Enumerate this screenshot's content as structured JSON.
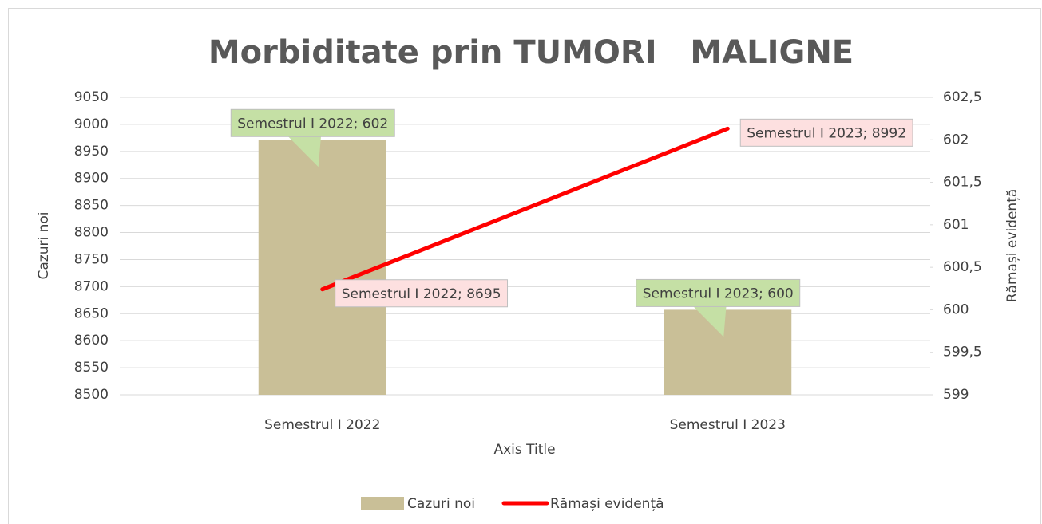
{
  "chart_data": {
    "type": "bar-line",
    "title": "Morbiditate prin TUMORI   MALIGNE",
    "x_label": "Axis Title",
    "y_label": "Cazuri noi",
    "y2_label": "Rămași evidență",
    "categories": [
      "Semestrul I 2022",
      "Semestrul I 2023"
    ],
    "series": [
      {
        "name": "Cazuri noi",
        "type": "bar",
        "axis": "y2",
        "color": "#c9bf97",
        "values": [
          602,
          600
        ],
        "value_labels": [
          "Semestrul I 2022; 602",
          "Semestrul I 2023; 600"
        ],
        "label_color": "#c5e0a5"
      },
      {
        "name": "Rămași evidență",
        "type": "line",
        "axis": "y",
        "color": "#ff0000",
        "values": [
          8695,
          8992
        ],
        "value_labels": [
          "Semestrul I 2022; 8695",
          "Semestrul I 2023; 8992"
        ],
        "label_color": "#fde0e0"
      }
    ],
    "ylim": [
      8500,
      9050
    ],
    "yticks": [
      8500,
      8550,
      8600,
      8650,
      8700,
      8750,
      8800,
      8850,
      8900,
      8950,
      9000,
      9050
    ],
    "y2lim": [
      599,
      602.5
    ],
    "y2ticks": [
      599,
      {
        "value": 599.5,
        "label": "599,5"
      },
      600,
      {
        "value": 600.5,
        "label": "600,5"
      },
      601,
      {
        "value": 601.5,
        "label": "601,5"
      },
      602,
      {
        "value": 602.5,
        "label": "602,5"
      }
    ],
    "grid": true,
    "legend": "bottom"
  }
}
